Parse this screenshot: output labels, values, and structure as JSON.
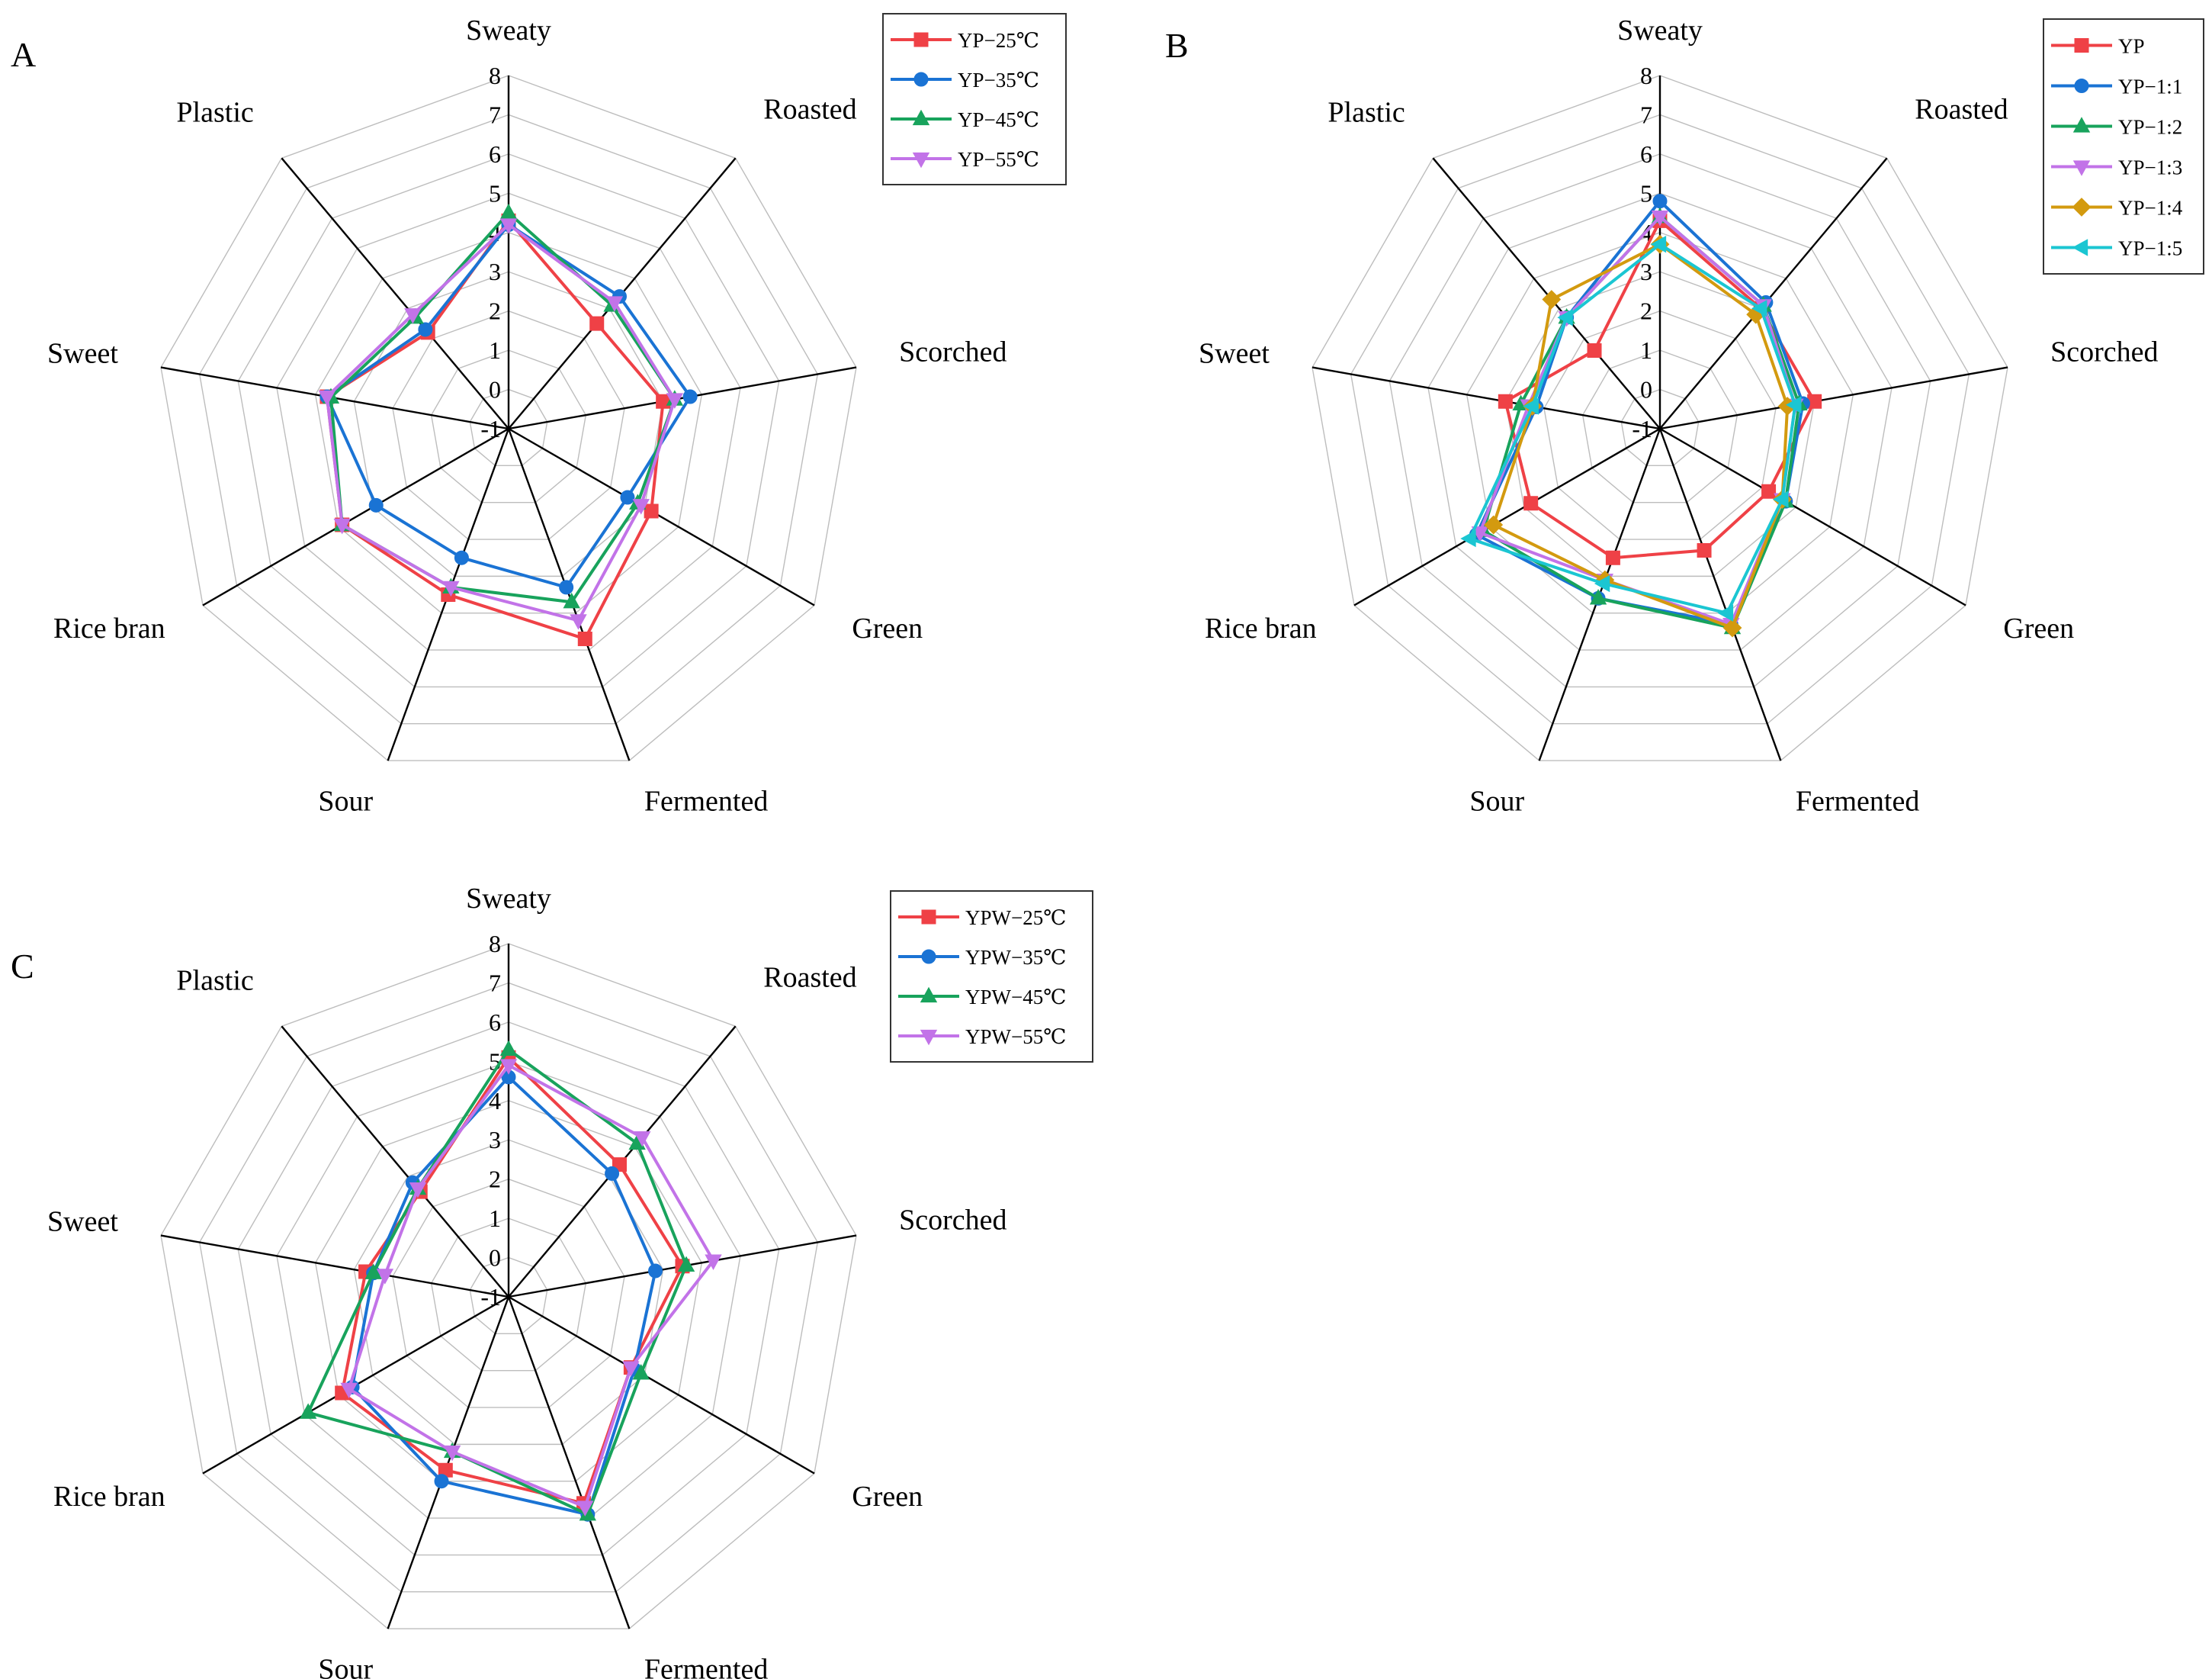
{
  "colors": {
    "red": "#ef4146",
    "blue": "#1a73d4",
    "green": "#18a35c",
    "violet": "#c273e8",
    "gold": "#d39a0f",
    "cyan": "#1bc6d2",
    "grid": "#bdbdbd",
    "axis": "#000000"
  },
  "chart_data": [
    {
      "type": "radar",
      "panel": "A",
      "axes": [
        "Sweaty",
        "Roasted",
        "Scorched",
        "Green",
        "Fermented",
        "Sour",
        "Rice bran",
        "Sweet",
        "Plastic"
      ],
      "rlim": [
        -1,
        8
      ],
      "ticks": [
        "-1",
        "0",
        "1",
        "2",
        "3",
        "4",
        "5",
        "6",
        "7",
        "8"
      ],
      "grid": true,
      "legend_position": "top-right",
      "series": [
        {
          "name": "YP−25℃",
          "color": "red",
          "marker": "square",
          "values": [
            4.3,
            2.5,
            3.0,
            3.2,
            4.7,
            3.5,
            3.9,
            3.7,
            2.2
          ]
        },
        {
          "name": "YP−35℃",
          "color": "blue",
          "marker": "circle",
          "values": [
            4.2,
            3.4,
            3.7,
            2.5,
            3.3,
            2.5,
            2.9,
            3.7,
            2.3
          ]
        },
        {
          "name": "YP−45℃",
          "color": "green",
          "marker": "triangle-up",
          "values": [
            4.5,
            3.1,
            3.3,
            2.8,
            3.7,
            3.3,
            3.9,
            3.6,
            2.7
          ]
        },
        {
          "name": "YP−55℃",
          "color": "violet",
          "marker": "triangle-down",
          "values": [
            4.2,
            3.2,
            3.3,
            2.9,
            4.2,
            3.3,
            3.9,
            3.7,
            2.8
          ]
        }
      ]
    },
    {
      "type": "radar",
      "panel": "B",
      "axes": [
        "Sweaty",
        "Roasted",
        "Scorched",
        "Green",
        "Fermented",
        "Sour",
        "Rice bran",
        "Sweet",
        "Plastic"
      ],
      "rlim": [
        -1,
        8
      ],
      "ticks": [
        "-1",
        "0",
        "1",
        "2",
        "3",
        "4",
        "5",
        "6",
        "7",
        "8"
      ],
      "grid": true,
      "legend_position": "top-right",
      "series": [
        {
          "name": "YP",
          "color": "red",
          "marker": "square",
          "values": [
            4.3,
            3.0,
            3.0,
            2.2,
            2.3,
            2.5,
            2.8,
            3.0,
            1.6
          ]
        },
        {
          "name": "YP−1:1",
          "color": "blue",
          "marker": "circle",
          "values": [
            4.8,
            3.2,
            2.7,
            2.7,
            4.3,
            3.6,
            4.4,
            2.2,
            2.7
          ]
        },
        {
          "name": "YP−1:2",
          "color": "green",
          "marker": "triangle-up",
          "values": [
            4.4,
            3.1,
            2.6,
            2.7,
            4.4,
            3.6,
            4.2,
            2.6,
            2.7
          ]
        },
        {
          "name": "YP−1:3",
          "color": "violet",
          "marker": "triangle-down",
          "values": [
            4.4,
            3.1,
            2.5,
            2.6,
            4.3,
            3.1,
            4.3,
            2.4,
            2.7
          ]
        },
        {
          "name": "YP−1:4",
          "color": "gold",
          "marker": "diamond",
          "values": [
            3.7,
            2.8,
            2.3,
            2.6,
            4.4,
            3.1,
            3.9,
            2.3,
            3.3
          ]
        },
        {
          "name": "YP−1:5",
          "color": "cyan",
          "marker": "triangle-left",
          "values": [
            3.7,
            3.0,
            2.5,
            2.6,
            4.0,
            3.2,
            4.6,
            2.3,
            2.7
          ]
        }
      ]
    },
    {
      "type": "radar",
      "panel": "C",
      "axes": [
        "Sweaty",
        "Roasted",
        "Scorched",
        "Green",
        "Fermented",
        "Sour",
        "Rice bran",
        "Sweet",
        "Plastic"
      ],
      "rlim": [
        -1,
        8
      ],
      "ticks": [
        "-1",
        "0",
        "1",
        "2",
        "3",
        "4",
        "5",
        "6",
        "7",
        "8"
      ],
      "grid": true,
      "legend_position": "top-right",
      "series": [
        {
          "name": "YPW−25℃",
          "color": "red",
          "marker": "square",
          "values": [
            5.1,
            3.4,
            3.5,
            2.6,
            4.6,
            3.7,
            3.9,
            2.7,
            2.5
          ]
        },
        {
          "name": "YPW−35℃",
          "color": "blue",
          "marker": "circle",
          "values": [
            4.6,
            3.1,
            2.8,
            2.7,
            4.9,
            4.0,
            3.6,
            2.5,
            2.8
          ]
        },
        {
          "name": "YPW−45℃",
          "color": "green",
          "marker": "triangle-up",
          "values": [
            5.3,
            4.1,
            3.6,
            2.9,
            4.9,
            3.2,
            4.9,
            2.5,
            2.6
          ]
        },
        {
          "name": "YPW−55℃",
          "color": "violet",
          "marker": "triangle-down",
          "values": [
            4.9,
            4.3,
            4.3,
            2.6,
            4.7,
            3.2,
            3.7,
            2.2,
            2.6
          ]
        }
      ]
    }
  ]
}
